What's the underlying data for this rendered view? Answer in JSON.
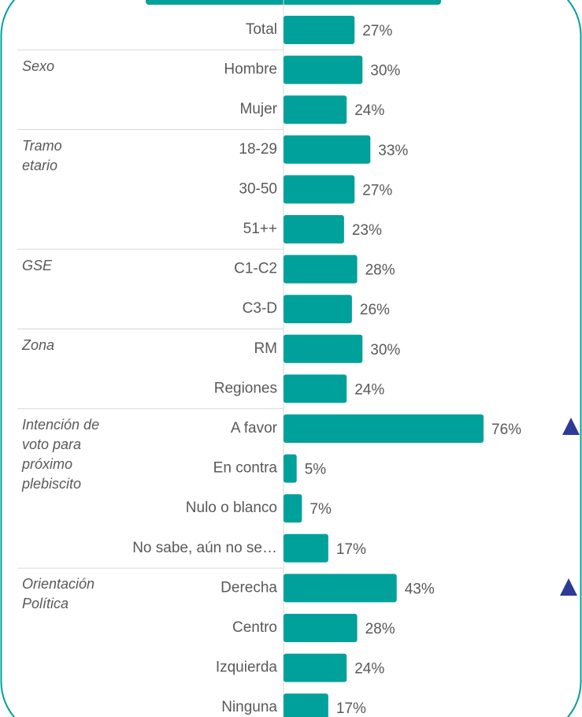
{
  "chart_data": {
    "type": "bar",
    "orientation": "horizontal",
    "color": "#00a19b",
    "categories": [
      "Total",
      "Hombre",
      "Mujer",
      "18-29",
      "30-50",
      "51++",
      "C1-C2",
      "C3-D",
      "RM",
      "Regiones",
      "A favor",
      "En contra",
      "Nulo o blanco",
      "No sabe, aún no se…",
      "Derecha",
      "Centro",
      "Izquierda",
      "Ninguna"
    ],
    "group_labels": [
      null,
      "Sexo",
      null,
      "Tramo\netario",
      null,
      null,
      "GSE",
      null,
      "Zona",
      null,
      "Intención de\nvoto para\npróximo\nplebiscito",
      null,
      null,
      null,
      "Orientación\nPolítica",
      null,
      null,
      null
    ],
    "values": [
      27,
      30,
      24,
      33,
      27,
      23,
      28,
      26,
      30,
      24,
      76,
      5,
      7,
      17,
      43,
      28,
      24,
      17
    ],
    "value_labels": [
      "27%",
      "30%",
      "24%",
      "33%",
      "27%",
      "23%",
      "28%",
      "26%",
      "30%",
      "24%",
      "76%",
      "5%",
      "7%",
      "17%",
      "43%",
      "28%",
      "24%",
      "17%"
    ]
  }
}
